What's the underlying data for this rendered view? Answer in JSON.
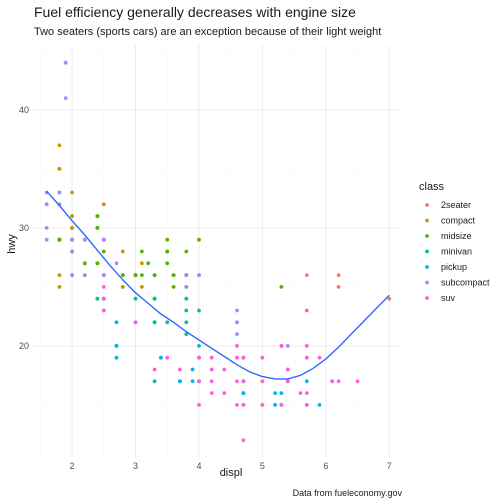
{
  "chart_data": {
    "type": "scatter",
    "title": "Fuel efficiency generally decreases with engine size",
    "subtitle": "Two seaters (sports cars) are an exception because of their light weight",
    "caption": "Data from fueleconomy.gov",
    "xlabel": "displ",
    "ylabel": "hwy",
    "xlim": [
      1.4,
      7.2
    ],
    "ylim": [
      10.5,
      45.5
    ],
    "x_ticks": [
      2,
      3,
      4,
      5,
      6,
      7
    ],
    "y_ticks": [
      20,
      30,
      40
    ],
    "grid": true,
    "legend": {
      "title": "class",
      "placement": "right"
    },
    "series": [
      {
        "name": "2seater",
        "color": "#F8766D",
        "points": [
          [
            5.7,
            26
          ],
          [
            5.7,
            23
          ],
          [
            6.2,
            26
          ],
          [
            6.2,
            25
          ],
          [
            7.0,
            24
          ]
        ]
      },
      {
        "name": "compact",
        "color": "#C49A00",
        "points": [
          [
            1.8,
            29
          ],
          [
            1.8,
            29
          ],
          [
            2.0,
            31
          ],
          [
            2.0,
            30
          ],
          [
            2.8,
            26
          ],
          [
            2.8,
            26
          ],
          [
            3.1,
            27
          ],
          [
            1.8,
            26
          ],
          [
            1.8,
            25
          ],
          [
            2.0,
            28
          ],
          [
            2.0,
            29
          ],
          [
            2.8,
            25
          ],
          [
            2.8,
            25
          ],
          [
            3.1,
            25
          ],
          [
            1.8,
            37
          ],
          [
            1.8,
            35
          ],
          [
            2.2,
            29
          ],
          [
            2.2,
            27
          ],
          [
            2.4,
            31
          ],
          [
            2.4,
            31
          ],
          [
            3.0,
            26
          ],
          [
            1.9,
            44
          ],
          [
            2.0,
            29
          ],
          [
            2.0,
            26
          ],
          [
            2.5,
            29
          ],
          [
            2.5,
            29
          ],
          [
            1.8,
            29
          ],
          [
            1.8,
            29
          ],
          [
            1.8,
            33
          ],
          [
            1.8,
            35
          ],
          [
            2.0,
            30
          ],
          [
            2.0,
            33
          ],
          [
            2.8,
            28
          ],
          [
            2.0,
            26
          ],
          [
            2.0,
            31
          ],
          [
            2.0,
            30
          ],
          [
            2.5,
            32
          ]
        ]
      },
      {
        "name": "midsize",
        "color": "#53B400",
        "points": [
          [
            2.4,
            27
          ],
          [
            2.4,
            30
          ],
          [
            3.1,
            26
          ],
          [
            3.5,
            29
          ],
          [
            3.6,
            26
          ],
          [
            2.4,
            27
          ],
          [
            3.0,
            26
          ],
          [
            3.3,
            26
          ],
          [
            3.3,
            26
          ],
          [
            3.3,
            24
          ],
          [
            3.8,
            26
          ],
          [
            3.8,
            26
          ],
          [
            4.0,
            26
          ],
          [
            2.2,
            26
          ],
          [
            2.2,
            27
          ],
          [
            2.4,
            30
          ],
          [
            2.4,
            31
          ],
          [
            3.0,
            26
          ],
          [
            3.0,
            26
          ],
          [
            3.5,
            28
          ],
          [
            2.4,
            27
          ],
          [
            3.1,
            28
          ],
          [
            3.5,
            28
          ],
          [
            3.6,
            26
          ],
          [
            5.3,
            25
          ],
          [
            1.8,
            29
          ],
          [
            1.8,
            29
          ],
          [
            2.0,
            28
          ],
          [
            2.0,
            29
          ],
          [
            2.8,
            26
          ],
          [
            2.8,
            26
          ],
          [
            3.6,
            25
          ],
          [
            1.8,
            29
          ],
          [
            2.5,
            29
          ],
          [
            2.5,
            28
          ],
          [
            3.5,
            27
          ],
          [
            3.8,
            26
          ],
          [
            3.8,
            28
          ],
          [
            4.0,
            29
          ],
          [
            2.5,
            26
          ],
          [
            3.2,
            27
          ],
          [
            3.8,
            25
          ],
          [
            2.5,
            24
          ]
        ]
      },
      {
        "name": "minivan",
        "color": "#00C094",
        "points": [
          [
            2.4,
            24
          ],
          [
            3.0,
            24
          ],
          [
            3.3,
            22
          ],
          [
            3.3,
            22
          ],
          [
            3.3,
            24
          ],
          [
            3.3,
            24
          ],
          [
            3.3,
            17
          ],
          [
            3.8,
            22
          ],
          [
            3.8,
            21
          ],
          [
            3.8,
            23
          ],
          [
            4.0,
            23
          ],
          [
            3.5,
            22
          ],
          [
            3.8,
            24
          ]
        ]
      },
      {
        "name": "pickup",
        "color": "#00B6EB",
        "points": [
          [
            2.7,
            20
          ],
          [
            2.7,
            19
          ],
          [
            2.7,
            20
          ],
          [
            3.0,
            22
          ],
          [
            3.7,
            17
          ],
          [
            3.7,
            17
          ],
          [
            3.9,
            18
          ],
          [
            3.9,
            17
          ],
          [
            4.7,
            16
          ],
          [
            4.7,
            16
          ],
          [
            4.7,
            17
          ],
          [
            5.2,
            16
          ],
          [
            5.2,
            15
          ],
          [
            5.7,
            17
          ],
          [
            5.9,
            15
          ],
          [
            4.0,
            17
          ],
          [
            4.0,
            17
          ],
          [
            3.4,
            19
          ],
          [
            4.7,
            17
          ],
          [
            5.4,
            17
          ],
          [
            4.0,
            19
          ],
          [
            2.7,
            22
          ],
          [
            3.4,
            19
          ],
          [
            3.7,
            17
          ],
          [
            4.0,
            20
          ],
          [
            4.7,
            16
          ],
          [
            4.7,
            15
          ],
          [
            4.7,
            17
          ],
          [
            5.3,
            16
          ],
          [
            5.3,
            15
          ]
        ]
      },
      {
        "name": "subcompact",
        "color": "#A58AFF",
        "points": [
          [
            1.8,
            32
          ],
          [
            1.8,
            33
          ],
          [
            1.6,
            32
          ],
          [
            1.6,
            29
          ],
          [
            1.6,
            32
          ],
          [
            1.6,
            30
          ],
          [
            1.6,
            33
          ],
          [
            1.8,
            33
          ],
          [
            1.9,
            44
          ],
          [
            1.9,
            41
          ],
          [
            2.0,
            29
          ],
          [
            2.0,
            26
          ],
          [
            2.0,
            29
          ],
          [
            2.5,
            29
          ],
          [
            2.5,
            24
          ],
          [
            2.2,
            26
          ],
          [
            2.2,
            29
          ],
          [
            2.5,
            26
          ],
          [
            2.7,
            27
          ],
          [
            3.8,
            26
          ],
          [
            3.8,
            25
          ],
          [
            4.0,
            26
          ],
          [
            4.6,
            23
          ],
          [
            4.6,
            22
          ],
          [
            4.6,
            21
          ],
          [
            4.6,
            22
          ],
          [
            5.4,
            20
          ],
          [
            5.4,
            18
          ],
          [
            2.0,
            28
          ],
          [
            2.0,
            29
          ],
          [
            2.5,
            26
          ]
        ]
      },
      {
        "name": "suv",
        "color": "#FB61D7",
        "points": [
          [
            5.7,
            20
          ],
          [
            5.7,
            15
          ],
          [
            6.1,
            17
          ],
          [
            5.3,
            20
          ],
          [
            5.3,
            15
          ],
          [
            5.3,
            20
          ],
          [
            5.7,
            19
          ],
          [
            6.5,
            17
          ],
          [
            6.2,
            17
          ],
          [
            4.7,
            12
          ],
          [
            4.7,
            17
          ],
          [
            4.7,
            19
          ],
          [
            4.6,
            17
          ],
          [
            5.4,
            17
          ],
          [
            4.0,
            19
          ],
          [
            4.0,
            17
          ],
          [
            4.6,
            19
          ],
          [
            5.0,
            17
          ],
          [
            5.0,
            19
          ],
          [
            2.5,
            23
          ],
          [
            2.5,
            25
          ],
          [
            2.5,
            23
          ],
          [
            2.5,
            24
          ],
          [
            3.0,
            22
          ],
          [
            3.3,
            18
          ],
          [
            3.5,
            19
          ],
          [
            4.0,
            15
          ],
          [
            4.2,
            19
          ],
          [
            4.2,
            18
          ],
          [
            4.4,
            16
          ],
          [
            4.4,
            18
          ],
          [
            4.7,
            15
          ],
          [
            5.7,
            15
          ],
          [
            6.1,
            17
          ],
          [
            3.7,
            18
          ],
          [
            4.7,
            19
          ],
          [
            4.6,
            20
          ],
          [
            5.0,
            15
          ],
          [
            5.7,
            16
          ],
          [
            5.9,
            19
          ],
          [
            4.2,
            17
          ],
          [
            4.2,
            16
          ],
          [
            4.6,
            15
          ],
          [
            5.3,
            20
          ],
          [
            5.4,
            18
          ],
          [
            4.0,
            19
          ],
          [
            4.0,
            17
          ],
          [
            5.6,
            16
          ]
        ]
      }
    ],
    "smooth": {
      "color": "#3366FF",
      "points": [
        [
          1.6,
          33.1
        ],
        [
          1.8,
          31.9
        ],
        [
          2.0,
          30.6
        ],
        [
          2.2,
          29.4
        ],
        [
          2.4,
          28.1
        ],
        [
          2.6,
          26.8
        ],
        [
          2.8,
          25.6
        ],
        [
          3.0,
          24.5
        ],
        [
          3.2,
          23.6
        ],
        [
          3.4,
          22.7
        ],
        [
          3.6,
          22.0
        ],
        [
          3.8,
          21.2
        ],
        [
          4.0,
          20.5
        ],
        [
          4.2,
          19.8
        ],
        [
          4.4,
          19.1
        ],
        [
          4.6,
          18.4
        ],
        [
          4.8,
          17.8
        ],
        [
          5.0,
          17.4
        ],
        [
          5.2,
          17.2
        ],
        [
          5.4,
          17.2
        ],
        [
          5.6,
          17.5
        ],
        [
          5.8,
          18.1
        ],
        [
          6.0,
          18.9
        ],
        [
          6.2,
          19.9
        ],
        [
          6.4,
          21.0
        ],
        [
          6.6,
          22.1
        ],
        [
          6.8,
          23.2
        ],
        [
          7.0,
          24.3
        ]
      ]
    }
  }
}
